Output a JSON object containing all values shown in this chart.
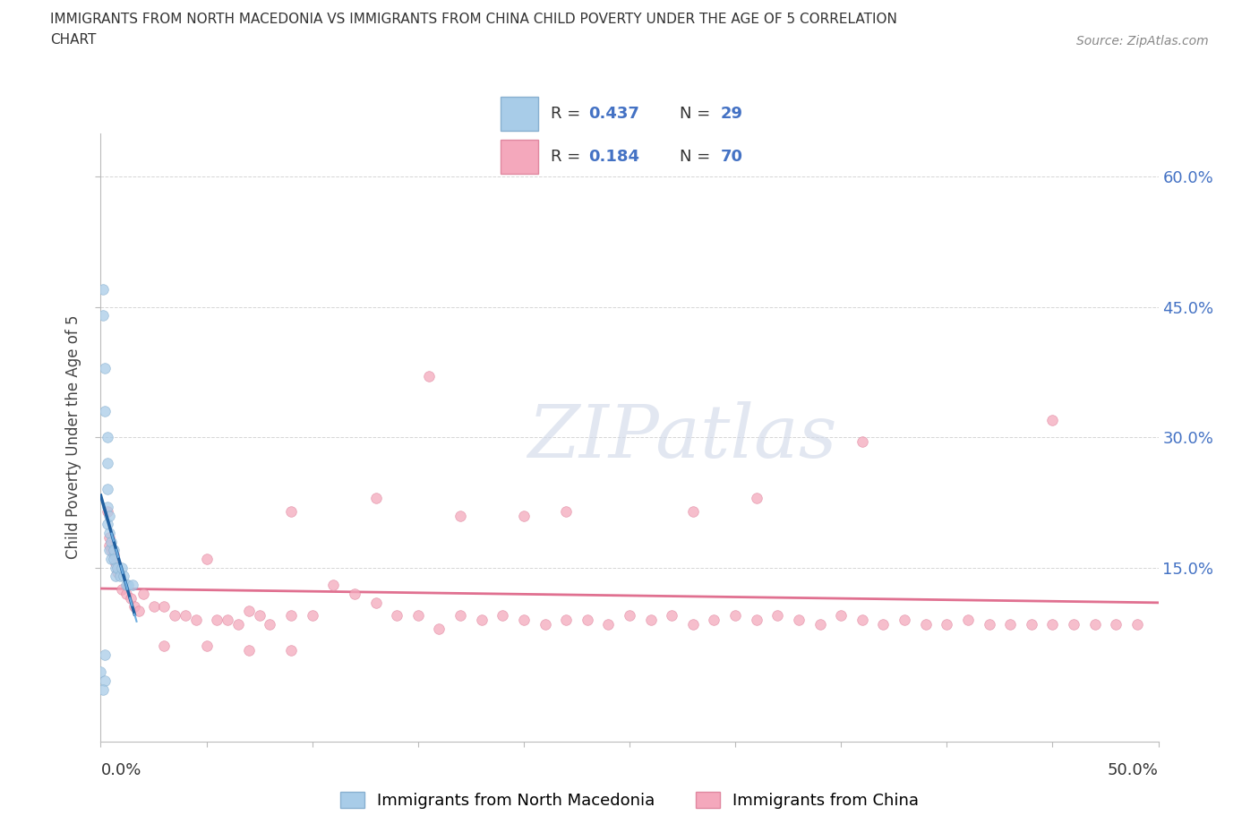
{
  "title_line1": "IMMIGRANTS FROM NORTH MACEDONIA VS IMMIGRANTS FROM CHINA CHILD POVERTY UNDER THE AGE OF 5 CORRELATION",
  "title_line2": "CHART",
  "source": "Source: ZipAtlas.com",
  "ylabel": "Child Poverty Under the Age of 5",
  "xlim": [
    0.0,
    0.5
  ],
  "ylim": [
    -0.05,
    0.65
  ],
  "yticks": [
    0.15,
    0.3,
    0.45,
    0.6
  ],
  "right_ytick_labels": [
    "15.0%",
    "30.0%",
    "45.0%",
    "60.0%"
  ],
  "blue_color": "#a8c8e8",
  "blue_line_color": "#2b6cb0",
  "blue_line_dash_color": "#7ab8e0",
  "pink_color": "#f4a0b5",
  "pink_line_color": "#e07090",
  "legend_label1": "Immigrants from North Macedonia",
  "legend_label2": "Immigrants from China",
  "blue_x": [
    0.001,
    0.001,
    0.002,
    0.003,
    0.003,
    0.003,
    0.003,
    0.003,
    0.004,
    0.004,
    0.004,
    0.004,
    0.005,
    0.005,
    0.005,
    0.006,
    0.006,
    0.007,
    0.007,
    0.008,
    0.009,
    0.01,
    0.011,
    0.012,
    0.013,
    0.015,
    0.002,
    0.002,
    0.001
  ],
  "blue_y": [
    0.47,
    0.43,
    0.38,
    0.33,
    0.3,
    0.27,
    0.24,
    0.22,
    0.21,
    0.2,
    0.18,
    0.17,
    0.19,
    0.18,
    0.16,
    0.17,
    0.16,
    0.15,
    0.14,
    0.15,
    0.14,
    0.15,
    0.14,
    0.13,
    0.13,
    0.13,
    0.05,
    0.03,
    0.02
  ],
  "pink_x": [
    0.002,
    0.003,
    0.004,
    0.004,
    0.005,
    0.006,
    0.007,
    0.008,
    0.009,
    0.01,
    0.012,
    0.014,
    0.016,
    0.018,
    0.02,
    0.025,
    0.03,
    0.035,
    0.04,
    0.045,
    0.05,
    0.055,
    0.06,
    0.065,
    0.07,
    0.075,
    0.08,
    0.09,
    0.1,
    0.11,
    0.12,
    0.13,
    0.14,
    0.15,
    0.16,
    0.17,
    0.18,
    0.19,
    0.2,
    0.21,
    0.22,
    0.23,
    0.24,
    0.25,
    0.26,
    0.27,
    0.28,
    0.29,
    0.3,
    0.31,
    0.32,
    0.33,
    0.34,
    0.35,
    0.36,
    0.37,
    0.38,
    0.39,
    0.4,
    0.41,
    0.42,
    0.43,
    0.44,
    0.45,
    0.46,
    0.47,
    0.48,
    0.49,
    0.05,
    0.07
  ],
  "pink_y": [
    0.215,
    0.2,
    0.185,
    0.175,
    0.17,
    0.165,
    0.155,
    0.145,
    0.13,
    0.125,
    0.12,
    0.115,
    0.105,
    0.1,
    0.12,
    0.105,
    0.105,
    0.095,
    0.095,
    0.09,
    0.16,
    0.09,
    0.09,
    0.085,
    0.1,
    0.095,
    0.085,
    0.095,
    0.095,
    0.13,
    0.12,
    0.11,
    0.095,
    0.095,
    0.08,
    0.095,
    0.09,
    0.095,
    0.09,
    0.085,
    0.09,
    0.09,
    0.085,
    0.095,
    0.09,
    0.095,
    0.085,
    0.09,
    0.095,
    0.09,
    0.095,
    0.09,
    0.085,
    0.095,
    0.09,
    0.085,
    0.09,
    0.085,
    0.085,
    0.09,
    0.085,
    0.085,
    0.085,
    0.085,
    0.085,
    0.085,
    0.085,
    0.085,
    0.365,
    0.2
  ],
  "watermark_text": "ZIPatlas"
}
